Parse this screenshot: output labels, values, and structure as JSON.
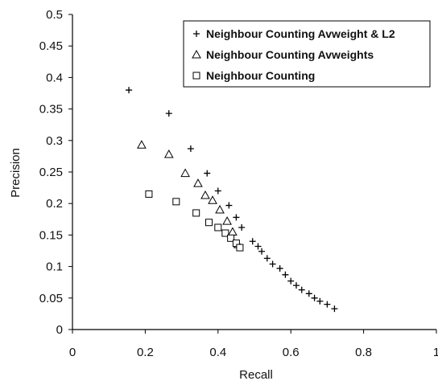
{
  "chart_data": {
    "type": "scatter",
    "xlabel": "Recall",
    "ylabel": "Precision",
    "xlim": [
      0,
      1
    ],
    "ylim": [
      0,
      0.5
    ],
    "xticks": [
      "0",
      "0.2",
      "0.4",
      "0.6",
      "0.8",
      "1"
    ],
    "yticks": [
      "0",
      "0.05",
      "0.1",
      "0.15",
      "0.2",
      "0.25",
      "0.3",
      "0.35",
      "0.4",
      "0.45",
      "0.5"
    ],
    "grid": false,
    "legend_position": "top-right",
    "series": [
      {
        "name": "Neighbour Counting Avweight & L2",
        "marker": "plus",
        "x": [
          0.155,
          0.265,
          0.325,
          0.37,
          0.4,
          0.43,
          0.45,
          0.465,
          0.495,
          0.51,
          0.52,
          0.535,
          0.55,
          0.57,
          0.585,
          0.6,
          0.615,
          0.63,
          0.65,
          0.665,
          0.68,
          0.7,
          0.72
        ],
        "y": [
          0.38,
          0.343,
          0.287,
          0.248,
          0.22,
          0.197,
          0.178,
          0.162,
          0.14,
          0.132,
          0.124,
          0.113,
          0.104,
          0.097,
          0.087,
          0.077,
          0.07,
          0.063,
          0.057,
          0.05,
          0.045,
          0.04,
          0.033
        ]
      },
      {
        "name": "Neighbour Counting Avweights",
        "marker": "triangle",
        "x": [
          0.19,
          0.265,
          0.31,
          0.345,
          0.365,
          0.385,
          0.405,
          0.425,
          0.44,
          0.455
        ],
        "y": [
          0.293,
          0.278,
          0.248,
          0.232,
          0.213,
          0.205,
          0.19,
          0.172,
          0.155,
          0.135
        ]
      },
      {
        "name": "Neighbour Counting",
        "marker": "square",
        "x": [
          0.21,
          0.285,
          0.34,
          0.375,
          0.4,
          0.42,
          0.435,
          0.45,
          0.46
        ],
        "y": [
          0.215,
          0.203,
          0.185,
          0.17,
          0.162,
          0.153,
          0.145,
          0.137,
          0.13
        ]
      }
    ]
  }
}
